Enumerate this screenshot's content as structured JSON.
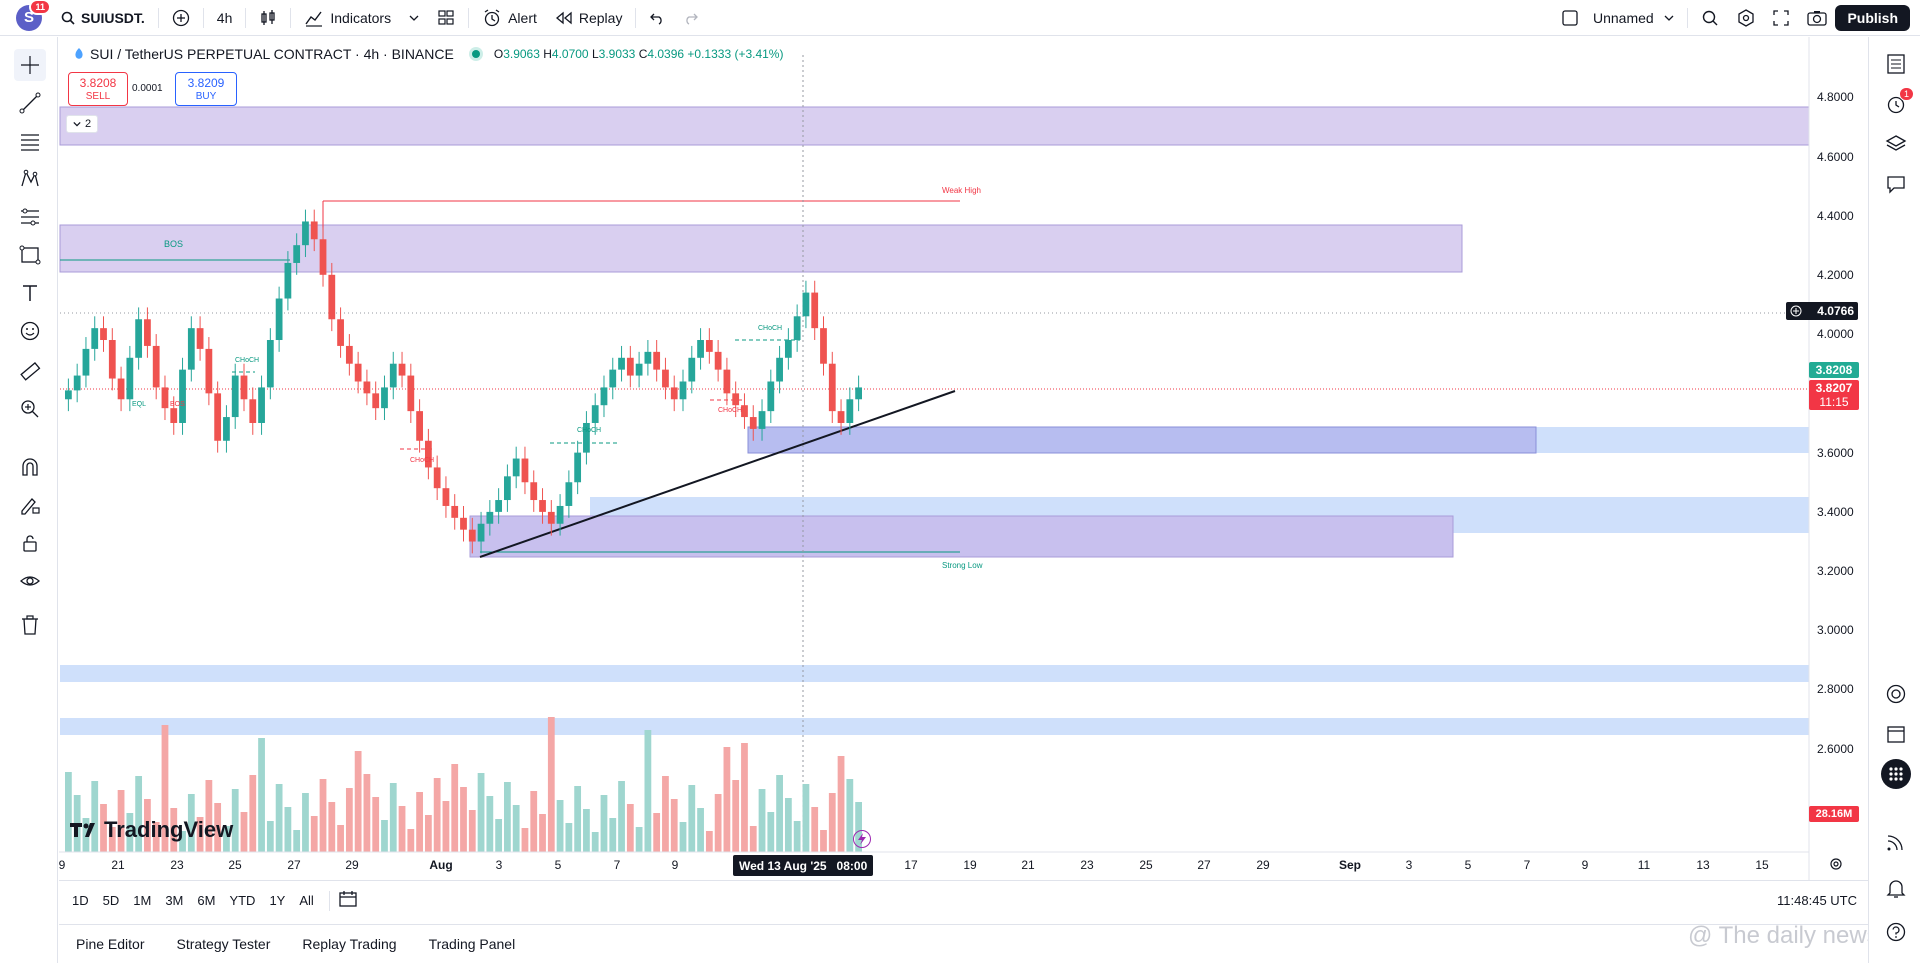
{
  "topbar": {
    "avatar_letter": "S",
    "avatar_badge": "11",
    "symbol": "SUIUSDT.",
    "interval": "4h",
    "indicators": "Indicators",
    "alert": "Alert",
    "replay": "Replay",
    "layout_name": "Unnamed",
    "publish": "Publish"
  },
  "legend": {
    "title": "SUI / TetherUS PERPETUAL CONTRACT · 4h · BINANCE",
    "o_label": "O",
    "o": "3.9063",
    "h_label": "H",
    "h": "4.0700",
    "l_label": "L",
    "l": "3.9033",
    "c_label": "C",
    "c": "4.0396",
    "change": "+0.1333 (+3.41%)"
  },
  "trade": {
    "sell_price": "3.8208",
    "sell_label": "SELL",
    "spread": "0.0001",
    "buy_price": "3.8209",
    "buy_label": "BUY",
    "collapse": "2"
  },
  "annotations": {
    "weak_high": "Weak High",
    "strong_low": "Strong Low",
    "bos_main": "BOS",
    "bos_small": "BOS",
    "eql": "EQL",
    "choch_1": "CHoCH",
    "choch_2": "CHoCH",
    "choch_3": "CHoCH",
    "choch_4": "CHoCH",
    "choch_5": "CHoCH"
  },
  "price_axis": {
    "labels": [
      "4.8000",
      "4.6000",
      "4.4000",
      "4.2000",
      "4.0000",
      "3.6000",
      "3.4000",
      "3.2000",
      "3.0000",
      "2.8000",
      "2.6000"
    ],
    "crosshair_price": "4.0766",
    "last_price": "3.8208",
    "bid_price": "3.8207",
    "countdown": "11:15",
    "volume": "28.16M"
  },
  "time_axis": {
    "labels": [
      "9",
      "21",
      "23",
      "25",
      "27",
      "29",
      "Aug",
      "3",
      "5",
      "7",
      "9",
      "17",
      "19",
      "21",
      "23",
      "25",
      "27",
      "29",
      "Sep",
      "3",
      "5",
      "7",
      "9",
      "11",
      "13",
      "15"
    ],
    "crosshair_time": "Wed 13 Aug '25",
    "crosshair_hour": "08:00"
  },
  "ranges": [
    "1D",
    "5D",
    "1M",
    "3M",
    "6M",
    "YTD",
    "1Y",
    "All"
  ],
  "clock": "11:48:45 UTC",
  "panels": [
    "Pine Editor",
    "Strategy Tester",
    "Replay Trading",
    "Trading Panel"
  ],
  "brand": "TradingView",
  "watermark": "@ The daily news",
  "right_badge": "1",
  "colors": {
    "up": "#26a69a",
    "down": "#ef5350",
    "zone_purple": "#d9cff0",
    "zone_blue": "#cfe0fb",
    "accent": "#2962ff"
  }
}
